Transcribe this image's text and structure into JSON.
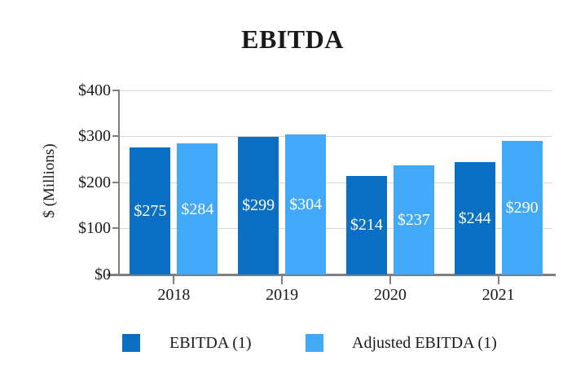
{
  "chart_data": {
    "type": "bar",
    "title": "EBITDA",
    "categories": [
      "2018",
      "2019",
      "2020",
      "2021"
    ],
    "series": [
      {
        "name": "EBITDA (1)",
        "color": "#0B6FC3",
        "values": [
          275,
          299,
          214,
          244
        ],
        "value_labels": [
          "$275",
          "$299",
          "$214",
          "$244"
        ]
      },
      {
        "name": "Adjusted EBITDA (1)",
        "color": "#41A9F8",
        "values": [
          284,
          304,
          237,
          290
        ],
        "value_labels": [
          "$284",
          "$304",
          "$237",
          "$290"
        ]
      }
    ],
    "xlabel": "",
    "ylabel": "$ (Millions)",
    "ylim": [
      0,
      400
    ],
    "y_tick_interval": 100,
    "y_ticks": [
      0,
      100,
      200,
      300,
      400
    ],
    "y_tick_labels": [
      "$0",
      "$100",
      "$200",
      "$300",
      "$400"
    ],
    "grid": true,
    "gridline_color": "#D9D9D9",
    "axis_color": "#7F7F7F",
    "value_label_color": "#FFFFFF",
    "legend_position": "bottom"
  }
}
